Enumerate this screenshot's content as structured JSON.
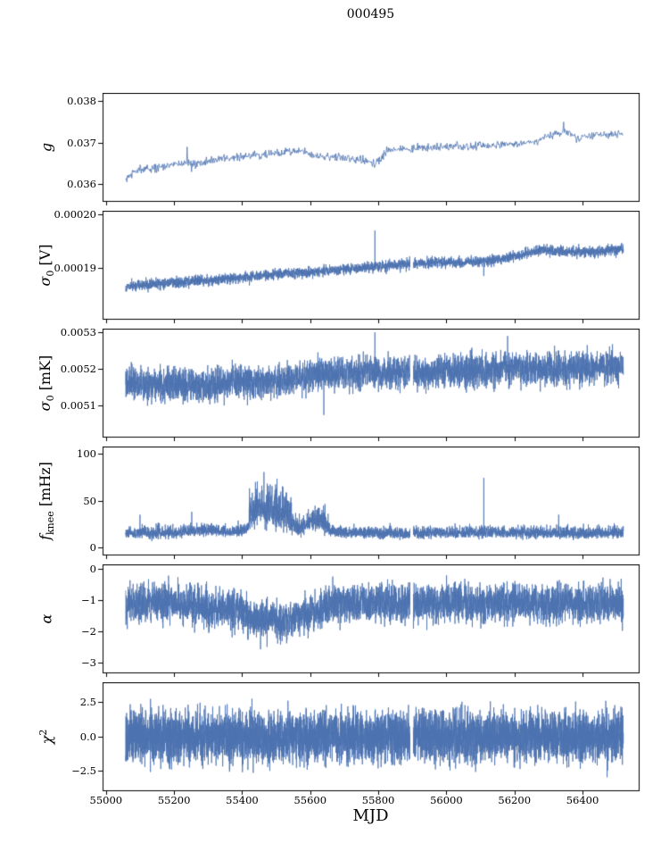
{
  "figure": {
    "title": "000495",
    "xlabel": "MJD",
    "xlim": [
      54990,
      56565
    ],
    "x_data_range": [
      55058,
      56520
    ],
    "xticks": [
      {
        "v": 55000,
        "label": "55000"
      },
      {
        "v": 55200,
        "label": "55200"
      },
      {
        "v": 55400,
        "label": "55400"
      },
      {
        "v": 55600,
        "label": "55600"
      },
      {
        "v": 55800,
        "label": "55800"
      },
      {
        "v": 56000,
        "label": "56000"
      },
      {
        "v": 56200,
        "label": "56200"
      },
      {
        "v": 56400,
        "label": "56400"
      }
    ],
    "line_color": "#4c72b0",
    "axis_color": "#000000",
    "background": "#ffffff",
    "legend": "none",
    "grid": false
  },
  "chart_data": [
    {
      "name": "g",
      "type": "line",
      "ylabel": [
        {
          "t": "g",
          "i": true
        }
      ],
      "ylabel_text": "g",
      "ylim": [
        0.0356,
        0.0382
      ],
      "yticks": [
        {
          "v": 0.036,
          "label": "0.036"
        },
        {
          "v": 0.037,
          "label": "0.037"
        },
        {
          "v": 0.038,
          "label": "0.038"
        }
      ],
      "trend": [
        [
          55058,
          0.0361
        ],
        [
          55090,
          0.03635
        ],
        [
          55130,
          0.0364
        ],
        [
          55180,
          0.03645
        ],
        [
          55230,
          0.0365
        ],
        [
          55270,
          0.0365
        ],
        [
          55320,
          0.0366
        ],
        [
          55380,
          0.03665
        ],
        [
          55440,
          0.0367
        ],
        [
          55500,
          0.03675
        ],
        [
          55560,
          0.0368
        ],
        [
          55620,
          0.0367
        ],
        [
          55680,
          0.03665
        ],
        [
          55740,
          0.0366
        ],
        [
          55790,
          0.0365
        ],
        [
          55830,
          0.0368
        ],
        [
          55880,
          0.03685
        ],
        [
          55950,
          0.0369
        ],
        [
          56050,
          0.0369
        ],
        [
          56150,
          0.03695
        ],
        [
          56250,
          0.037
        ],
        [
          56310,
          0.0372
        ],
        [
          56350,
          0.0373
        ],
        [
          56390,
          0.0371
        ],
        [
          56440,
          0.0372
        ],
        [
          56520,
          0.0372
        ]
      ],
      "noise": 5e-05,
      "skew": 0,
      "points": 900,
      "seed": 11,
      "spikes": [
        [
          55238,
          0.0369
        ],
        [
          55252,
          0.0363
        ],
        [
          56345,
          0.0375
        ]
      ],
      "gaps": []
    },
    {
      "name": "sigma0-v",
      "type": "line",
      "ylabel": [
        {
          "t": "σ",
          "i": true
        },
        {
          "t": "0",
          "sub": true
        },
        {
          "t": " [V]"
        }
      ],
      "ylabel_text": "sigma_0 [V]",
      "ylim": [
        0.0001805,
        0.0002007
      ],
      "yticks": [
        {
          "v": 0.00019,
          "label": "0.00019"
        },
        {
          "v": 0.0002,
          "label": "0.00020"
        }
      ],
      "trend": [
        [
          55058,
          0.0001865
        ],
        [
          55150,
          0.000187
        ],
        [
          55250,
          0.0001875
        ],
        [
          55350,
          0.000188
        ],
        [
          55450,
          0.0001885
        ],
        [
          55550,
          0.000189
        ],
        [
          55650,
          0.0001895
        ],
        [
          55750,
          0.00019
        ],
        [
          55850,
          0.0001905
        ],
        [
          55950,
          0.000191
        ],
        [
          56050,
          0.000191
        ],
        [
          56150,
          0.0001915
        ],
        [
          56230,
          0.0001925
        ],
        [
          56280,
          0.0001935
        ],
        [
          56350,
          0.000193
        ],
        [
          56420,
          0.000193
        ],
        [
          56520,
          0.0001935
        ]
      ],
      "noise": 5e-07,
      "skew": 0,
      "points": 4000,
      "seed": 22,
      "spikes": [
        [
          55790,
          0.000197
        ],
        [
          56110,
          0.0001885
        ]
      ],
      "gaps": [
        [
          55893,
          55903
        ]
      ]
    },
    {
      "name": "sigma0-mk",
      "type": "line",
      "ylabel": [
        {
          "t": "σ",
          "i": true
        },
        {
          "t": "0",
          "sub": true
        },
        {
          "t": " [mK]"
        }
      ],
      "ylabel_text": "sigma_0 [mK]",
      "ylim": [
        0.005016,
        0.00531
      ],
      "yticks": [
        {
          "v": 0.0051,
          "label": "0.0051"
        },
        {
          "v": 0.0052,
          "label": "0.0052"
        },
        {
          "v": 0.0053,
          "label": "0.0053"
        }
      ],
      "trend": [
        [
          55058,
          0.00516
        ],
        [
          55200,
          0.005158
        ],
        [
          55300,
          0.005152
        ],
        [
          55380,
          0.005165
        ],
        [
          55480,
          0.005168
        ],
        [
          55560,
          0.005175
        ],
        [
          55650,
          0.005185
        ],
        [
          55750,
          0.005195
        ],
        [
          55850,
          0.00519
        ],
        [
          55950,
          0.00519
        ],
        [
          56050,
          0.005195
        ],
        [
          56150,
          0.0052
        ],
        [
          56250,
          0.0052
        ],
        [
          56350,
          0.0052
        ],
        [
          56450,
          0.005205
        ],
        [
          56520,
          0.00521
        ]
      ],
      "noise": 2.2e-05,
      "skew": 0,
      "points": 4200,
      "seed": 33,
      "spikes": [
        [
          55790,
          0.0053
        ],
        [
          56180,
          0.00529
        ],
        [
          55640,
          0.005075
        ]
      ],
      "gaps": [
        [
          55893,
          55903
        ]
      ]
    },
    {
      "name": "fknee",
      "type": "line",
      "ylabel": [
        {
          "t": "f",
          "i": true
        },
        {
          "t": "knee",
          "sub": true
        },
        {
          "t": " [mHz]"
        }
      ],
      "ylabel_text": "f_knee [mHz]",
      "ylim": [
        -7.5,
        107.5
      ],
      "yticks": [
        {
          "v": 0,
          "label": "0"
        },
        {
          "v": 50,
          "label": "50"
        },
        {
          "v": 100,
          "label": "100"
        }
      ],
      "trend": [
        [
          55058,
          13
        ],
        [
          55200,
          13
        ],
        [
          55260,
          15
        ],
        [
          55310,
          16
        ],
        [
          55360,
          14
        ],
        [
          55410,
          16
        ],
        [
          55430,
          26
        ],
        [
          55455,
          30
        ],
        [
          55480,
          28
        ],
        [
          55510,
          24
        ],
        [
          55545,
          18
        ],
        [
          55580,
          16
        ],
        [
          55600,
          22
        ],
        [
          55625,
          22
        ],
        [
          55655,
          15
        ],
        [
          55700,
          13
        ],
        [
          55800,
          13
        ],
        [
          55900,
          12
        ],
        [
          56000,
          13
        ],
        [
          56100,
          13
        ],
        [
          56200,
          13
        ],
        [
          56300,
          13
        ],
        [
          56400,
          12
        ],
        [
          56520,
          13
        ]
      ],
      "noise": 2.2,
      "skew": 3.5,
      "noise_regions": [
        {
          "x0": 55420,
          "x1": 55545,
          "amp": 5,
          "skew": 17
        },
        {
          "x0": 55545,
          "x1": 55590,
          "amp": 3.5,
          "skew": 8
        },
        {
          "x0": 55590,
          "x1": 55655,
          "amp": 3,
          "skew": 8
        }
      ],
      "points": 4500,
      "seed": 44,
      "spikes": [
        [
          55100,
          35
        ],
        [
          55252,
          38
        ],
        [
          56110,
          74
        ],
        [
          56330,
          35
        ]
      ],
      "gaps": [
        [
          55893,
          55903
        ]
      ]
    },
    {
      "name": "alpha",
      "type": "line",
      "ylabel": [
        {
          "t": "α",
          "i": true
        }
      ],
      "ylabel_text": "alpha",
      "ylim": [
        -3.31,
        0.14
      ],
      "yticks": [
        {
          "v": 0,
          "label": "0"
        },
        {
          "v": -1,
          "label": "−1"
        },
        {
          "v": -2,
          "label": "−2"
        },
        {
          "v": -3,
          "label": "−3"
        }
      ],
      "trend": [
        [
          55058,
          -1.1
        ],
        [
          55200,
          -1.1
        ],
        [
          55270,
          -1.15
        ],
        [
          55310,
          -1.35
        ],
        [
          55340,
          -1.25
        ],
        [
          55380,
          -1.3
        ],
        [
          55420,
          -1.55
        ],
        [
          55460,
          -1.65
        ],
        [
          55510,
          -1.65
        ],
        [
          55550,
          -1.6
        ],
        [
          55590,
          -1.45
        ],
        [
          55620,
          -1.3
        ],
        [
          55660,
          -1.15
        ],
        [
          55720,
          -1.1
        ],
        [
          56520,
          -1.1
        ]
      ],
      "noise": 0.3,
      "skew": 0,
      "points": 4500,
      "seed": 55,
      "spikes": [],
      "gaps": [
        [
          55893,
          55903
        ]
      ]
    },
    {
      "name": "chi2",
      "type": "line",
      "ylabel": [
        {
          "t": "χ",
          "i": true
        },
        {
          "t": "2",
          "sup": true
        }
      ],
      "ylabel_text": "chi^2",
      "ylim": [
        -3.9,
        3.9
      ],
      "yticks": [
        {
          "v": 2.5,
          "label": "2.5"
        },
        {
          "v": 0,
          "label": "0.0"
        },
        {
          "v": -2.5,
          "label": "−2.5"
        }
      ],
      "trend": [
        [
          55058,
          0
        ],
        [
          56520,
          0
        ]
      ],
      "noise": 0.9,
      "skew": 0,
      "points": 6000,
      "seed": 66,
      "spikes": [],
      "gaps": [
        [
          55893,
          55903
        ]
      ]
    }
  ]
}
